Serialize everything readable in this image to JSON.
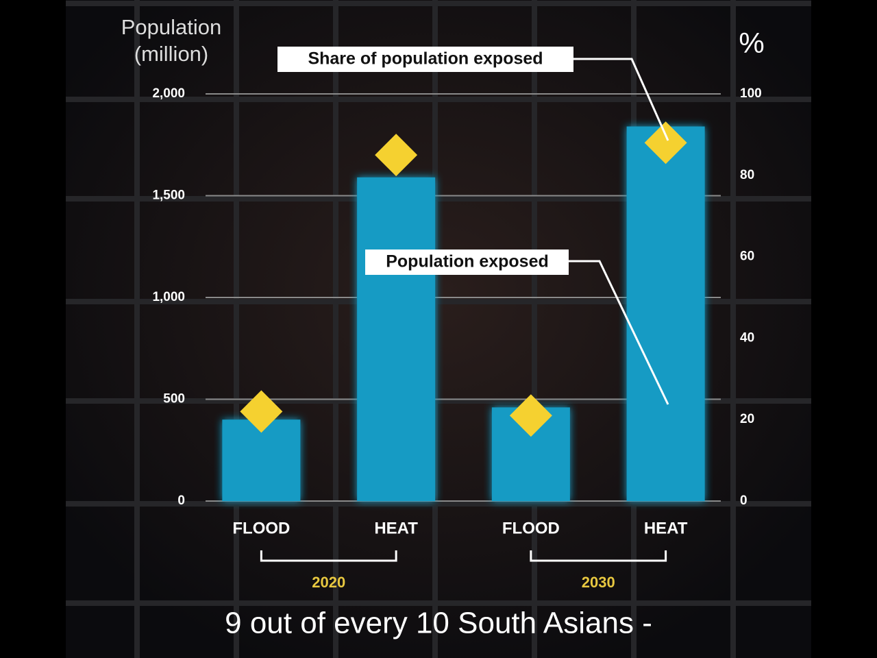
{
  "chart_data": {
    "type": "bar",
    "y_label": "Population (million)",
    "y2_label": "%",
    "categories": [
      "FLOOD",
      "HEAT",
      "FLOOD",
      "HEAT"
    ],
    "groups": [
      "2020",
      "2030"
    ],
    "series": [
      {
        "name": "Population exposed",
        "type": "bar",
        "color": "#139bc4",
        "values": [
          400,
          1590,
          460,
          1840
        ]
      },
      {
        "name": "Share of population exposed",
        "type": "scatter",
        "marker": "diamond",
        "color": "#f5d130",
        "axis": "y2",
        "values": [
          22,
          85,
          21,
          88
        ]
      }
    ],
    "ylim": [
      0,
      2000
    ],
    "yticks": [
      0,
      500,
      {
        "value": 1000,
        "label": "1,000"
      },
      {
        "value": 1500,
        "label": "1,500"
      },
      {
        "value": 2000,
        "label": "2,000"
      }
    ],
    "y2lim": [
      0,
      100
    ],
    "y2ticks": [
      0,
      20,
      40,
      60,
      80,
      100
    ],
    "grid": true,
    "caption": "9 out of every 10 South Asians -"
  }
}
